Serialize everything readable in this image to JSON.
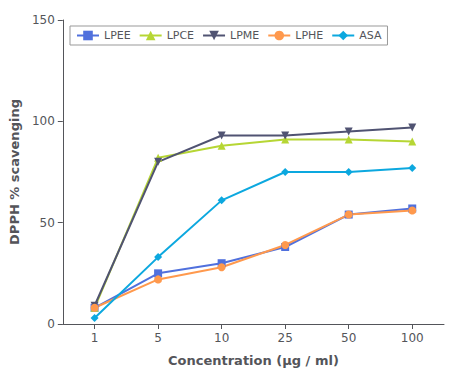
{
  "chart_data": {
    "type": "line",
    "categories": [
      "1",
      "5",
      "10",
      "25",
      "50",
      "100"
    ],
    "series": [
      {
        "name": "LPEE",
        "marker": "square",
        "values": [
          8,
          25,
          30,
          38,
          54,
          57
        ]
      },
      {
        "name": "LPCE",
        "marker": "triangle-up",
        "values": [
          8,
          82,
          88,
          91,
          91,
          90
        ]
      },
      {
        "name": "LPME",
        "marker": "triangle-down",
        "values": [
          9,
          80,
          93,
          93,
          95,
          97
        ]
      },
      {
        "name": "LPHE",
        "marker": "circle",
        "values": [
          8,
          22,
          28,
          39,
          54,
          56
        ]
      },
      {
        "name": "ASA",
        "marker": "diamond",
        "values": [
          3,
          33,
          61,
          75,
          75,
          77
        ]
      }
    ],
    "xlabel": "Concentration (μg / ml)",
    "ylabel": "DPPH % scavenging",
    "ylim": [
      0,
      150
    ],
    "yticks": [
      0,
      50,
      100,
      150
    ],
    "grid": false,
    "legend": "upper left"
  }
}
